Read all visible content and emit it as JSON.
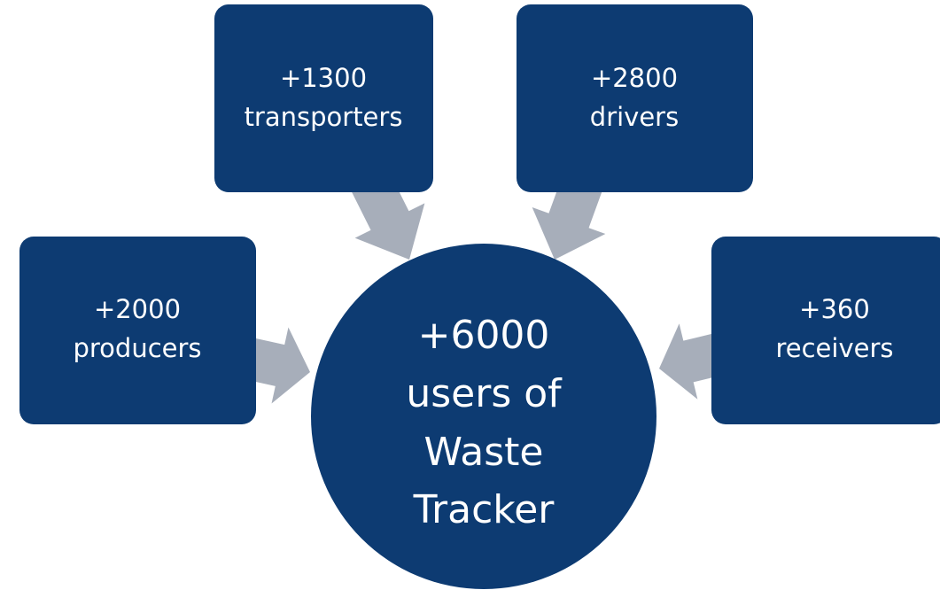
{
  "nodes": [
    {
      "lines": [
        "+1300",
        "transporters"
      ]
    },
    {
      "lines": [
        "+2800",
        "drivers"
      ]
    },
    {
      "lines": [
        "+2000",
        "producers"
      ]
    },
    {
      "lines": [
        "+360",
        "receivers"
      ]
    }
  ],
  "center": {
    "lines": [
      "+6000",
      "users of",
      "Waste",
      "Tracker"
    ]
  }
}
